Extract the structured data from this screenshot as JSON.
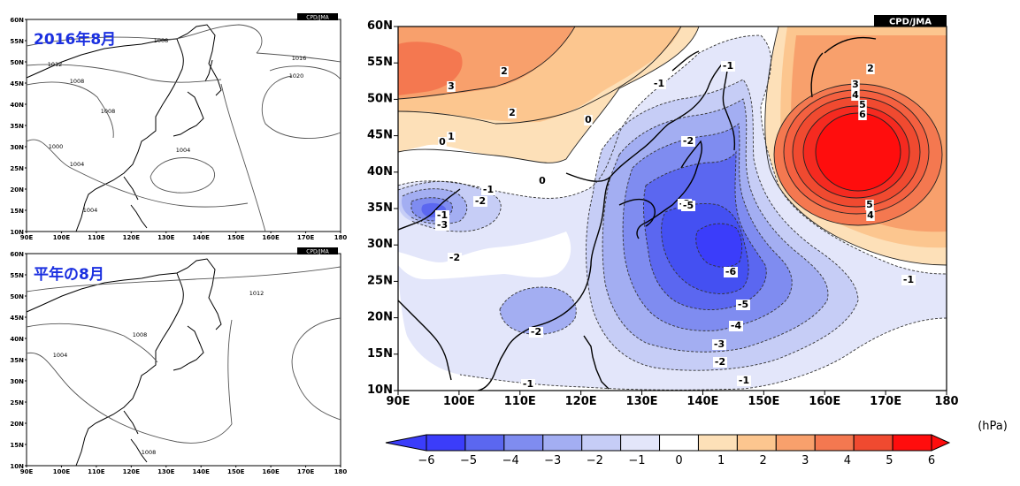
{
  "top_left_panel": {
    "title": "2016年8月",
    "credit": "CPD/JMA",
    "lat_ticks": [
      "10N",
      "15N",
      "20N",
      "25N",
      "30N",
      "35N",
      "40N",
      "45N",
      "50N",
      "55N",
      "60N"
    ],
    "lon_ticks": [
      "90E",
      "100E",
      "110E",
      "120E",
      "130E",
      "140E",
      "150E",
      "160E",
      "170E",
      "180"
    ],
    "contour_labels": [
      "1008",
      "1016",
      "1012",
      "1008",
      "1020",
      "1008",
      "1000",
      "1004",
      "1004",
      "1004"
    ]
  },
  "bottom_left_panel": {
    "title": "平年の8月",
    "credit": "CPD/JMA",
    "lat_ticks": [
      "10N",
      "15N",
      "20N",
      "25N",
      "30N",
      "35N",
      "40N",
      "45N",
      "50N",
      "55N",
      "60N"
    ],
    "lon_ticks": [
      "90E",
      "100E",
      "110E",
      "120E",
      "130E",
      "140E",
      "150E",
      "160E",
      "170E",
      "180"
    ],
    "contour_labels": [
      "1012",
      "1008",
      "1004",
      "1008"
    ]
  },
  "anomaly_panel": {
    "credit": "CPD/JMA",
    "lat_ticks": [
      "10N",
      "15N",
      "20N",
      "25N",
      "30N",
      "35N",
      "40N",
      "45N",
      "50N",
      "55N",
      "60N"
    ],
    "lon_ticks": [
      "90E",
      "100E",
      "110E",
      "120E",
      "130E",
      "140E",
      "150E",
      "160E",
      "170E",
      "180"
    ],
    "contour_labels": [
      "2",
      "3",
      "2",
      "0",
      "1",
      "0",
      "-2",
      "-1",
      "-3",
      "-1",
      "-2",
      "-1",
      "-2",
      "-3",
      "-1",
      "-5",
      "-6",
      "-2",
      "-5",
      "-4",
      "-3",
      "-2",
      "-1",
      "-1",
      "0",
      "2",
      "3",
      "4",
      "5",
      "6",
      "5",
      "4",
      "-1"
    ]
  },
  "colorbar": {
    "unit": "(hPa)",
    "ticks": [
      "−6",
      "−5",
      "−4",
      "−3",
      "−2",
      "−1",
      "0",
      "1",
      "2",
      "3",
      "4",
      "5",
      "6"
    ],
    "colors": [
      "#3b3dfa",
      "#5b67f0",
      "#7f8cf0",
      "#a3aef2",
      "#c6cdf6",
      "#e3e6fa",
      "#ffffff",
      "#fde0b8",
      "#fcc68f",
      "#f8a06c",
      "#f47850",
      "#f04a30",
      "#ff0d0d"
    ]
  }
}
